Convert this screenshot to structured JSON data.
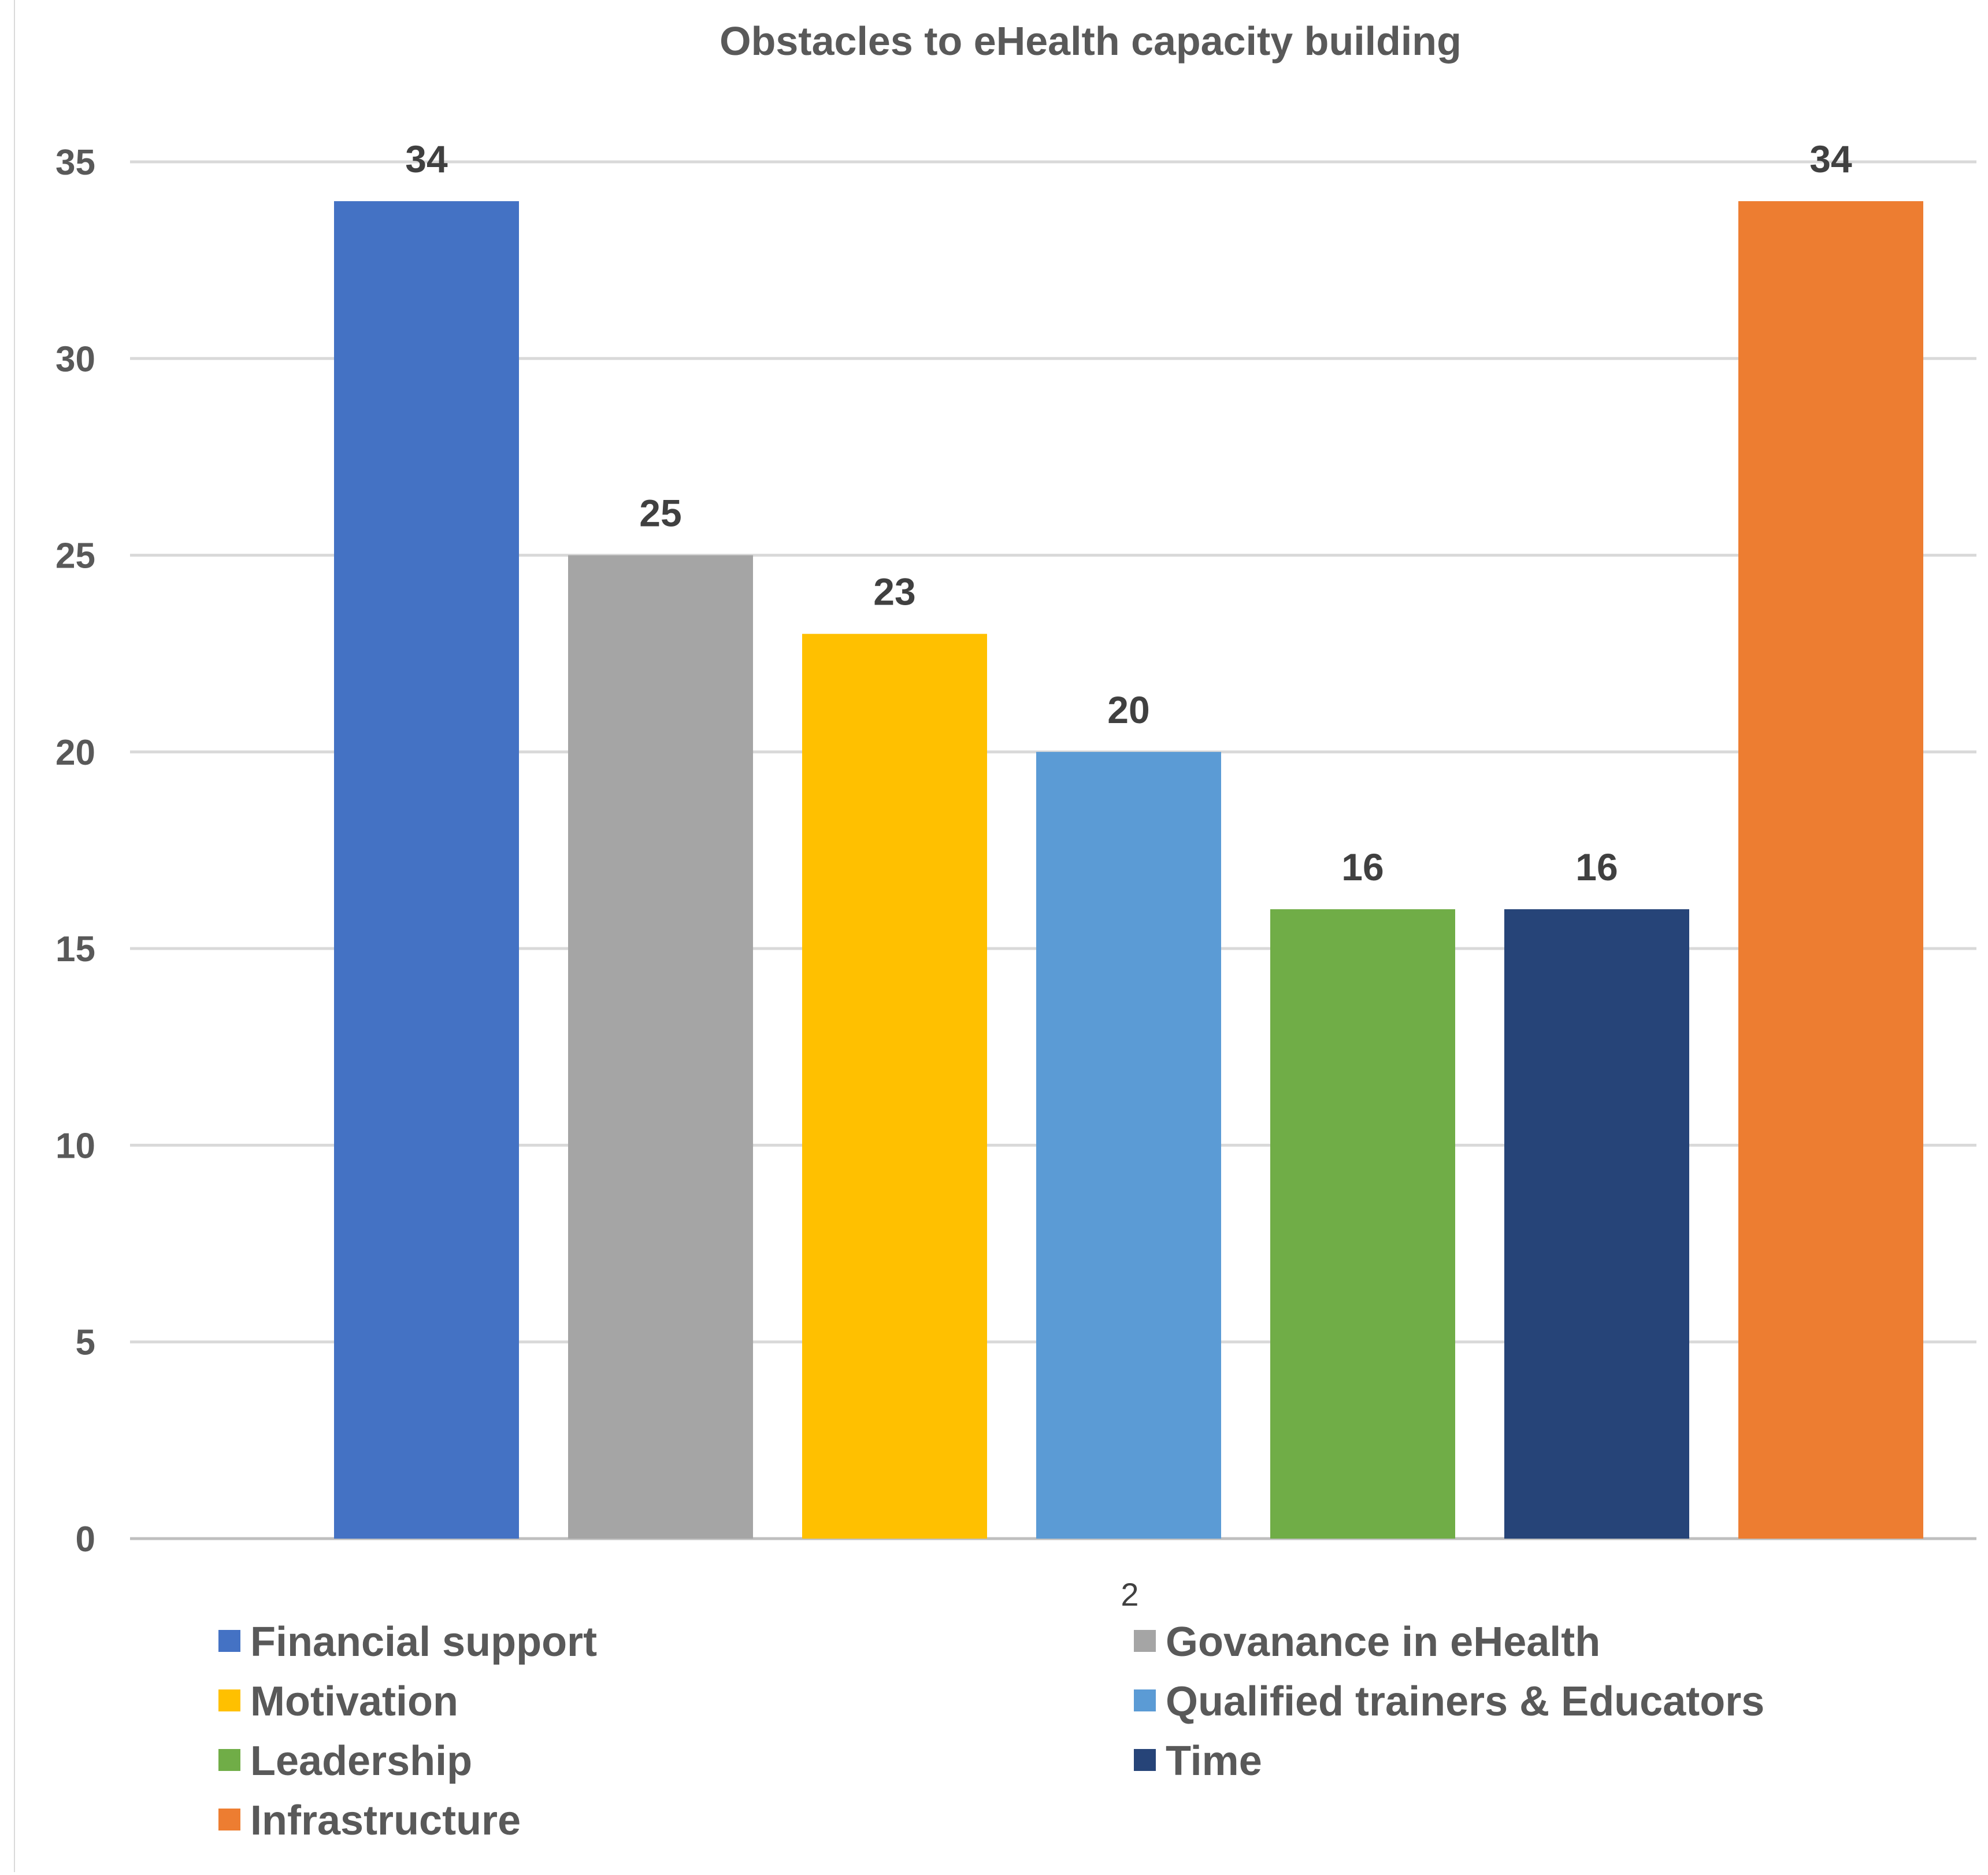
{
  "chart_data": {
    "type": "bar",
    "title": "Obstacles to eHealth capacity building",
    "categories": [
      "2"
    ],
    "xlabel": "",
    "ylabel": "",
    "ylim": [
      0,
      35
    ],
    "yticks": [
      0,
      5,
      10,
      15,
      20,
      25,
      30,
      35
    ],
    "grid": true,
    "legend_position": "bottom",
    "series": [
      {
        "name": "Financial support",
        "values": [
          34
        ],
        "color": "#4472C4"
      },
      {
        "name": "Govanance in eHealth",
        "values": [
          25
        ],
        "color": "#A5A5A5"
      },
      {
        "name": "Motivation",
        "values": [
          23
        ],
        "color": "#FFC000"
      },
      {
        "name": "Qualified trainers & Educators",
        "values": [
          20
        ],
        "color": "#5B9BD5"
      },
      {
        "name": "Leadership",
        "values": [
          16
        ],
        "color": "#70AD47"
      },
      {
        "name": "Time",
        "values": [
          16
        ],
        "color": "#264478"
      },
      {
        "name": "Infrastructure",
        "values": [
          34
        ],
        "color": "#ED7D31"
      }
    ]
  }
}
